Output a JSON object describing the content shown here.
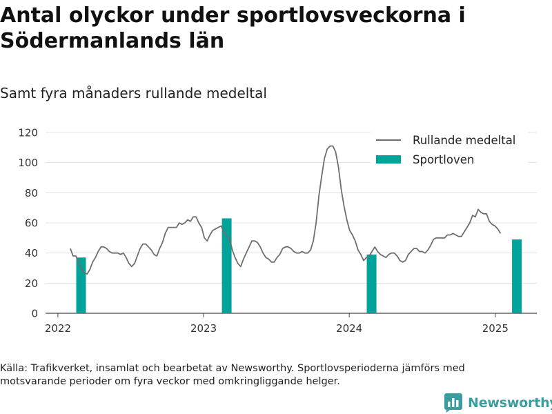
{
  "title": "Antal olyckor under sportlovsveckorna i Södermanlands län",
  "subtitle": "Samt fyra månaders rullande medeltal",
  "footnote": "Källa: Trafikverket, insamlat och bearbetat av Newsworthy. Sportlovsperioderna jämförs med motsvarande perioder om fyra veckor med omkringliggande helger.",
  "logo": {
    "text": "Newsworthy",
    "icon": "newsworthy-bar-chart-logo-icon"
  },
  "colors": {
    "line": "#6e6e6e",
    "bar": "#00a39a",
    "grid": "#e3e3e3",
    "axis": "#444444",
    "logo": "#3a9e9e"
  },
  "chart_data": {
    "type": "line",
    "x_axis": {
      "ticks": [
        "2022",
        "2023",
        "2024",
        "2025"
      ],
      "range": [
        "2021-12-01",
        "2025-04-15"
      ]
    },
    "y_axis": {
      "ticks": [
        0,
        20,
        40,
        60,
        80,
        100,
        120
      ],
      "range": [
        0,
        120
      ]
    },
    "grid": true,
    "legend_position": "top-right",
    "series": [
      {
        "name": "Rullande medeltal",
        "type": "line",
        "points": [
          [
            "2022-02-01",
            43
          ],
          [
            "2022-02-08",
            38
          ],
          [
            "2022-02-15",
            38
          ],
          [
            "2022-02-22",
            34
          ],
          [
            "2022-03-01",
            29
          ],
          [
            "2022-03-08",
            27
          ],
          [
            "2022-03-15",
            26
          ],
          [
            "2022-03-22",
            29
          ],
          [
            "2022-03-29",
            34
          ],
          [
            "2022-04-05",
            37
          ],
          [
            "2022-04-12",
            41
          ],
          [
            "2022-04-19",
            44
          ],
          [
            "2022-04-26",
            44
          ],
          [
            "2022-05-03",
            43
          ],
          [
            "2022-05-10",
            41
          ],
          [
            "2022-05-17",
            40
          ],
          [
            "2022-05-24",
            40
          ],
          [
            "2022-05-31",
            40
          ],
          [
            "2022-06-07",
            39
          ],
          [
            "2022-06-14",
            40
          ],
          [
            "2022-06-21",
            37
          ],
          [
            "2022-06-28",
            33
          ],
          [
            "2022-07-05",
            31
          ],
          [
            "2022-07-12",
            33
          ],
          [
            "2022-07-19",
            38
          ],
          [
            "2022-07-26",
            43
          ],
          [
            "2022-08-02",
            46
          ],
          [
            "2022-08-09",
            46
          ],
          [
            "2022-08-16",
            44
          ],
          [
            "2022-08-23",
            42
          ],
          [
            "2022-08-30",
            39
          ],
          [
            "2022-09-06",
            38
          ],
          [
            "2022-09-13",
            43
          ],
          [
            "2022-09-20",
            47
          ],
          [
            "2022-09-27",
            53
          ],
          [
            "2022-10-04",
            57
          ],
          [
            "2022-10-11",
            57
          ],
          [
            "2022-10-18",
            57
          ],
          [
            "2022-10-25",
            57
          ],
          [
            "2022-11-01",
            60
          ],
          [
            "2022-11-08",
            59
          ],
          [
            "2022-11-15",
            60
          ],
          [
            "2022-11-22",
            62
          ],
          [
            "2022-11-29",
            61
          ],
          [
            "2022-12-06",
            64
          ],
          [
            "2022-12-13",
            64
          ],
          [
            "2022-12-20",
            60
          ],
          [
            "2022-12-27",
            57
          ],
          [
            "2023-01-03",
            50
          ],
          [
            "2023-01-10",
            48
          ],
          [
            "2023-01-17",
            52
          ],
          [
            "2023-01-24",
            55
          ],
          [
            "2023-01-31",
            56
          ],
          [
            "2023-02-07",
            57
          ],
          [
            "2023-02-14",
            58
          ],
          [
            "2023-02-21",
            54
          ],
          [
            "2023-02-28",
            51
          ],
          [
            "2023-03-07",
            50
          ],
          [
            "2023-03-14",
            42
          ],
          [
            "2023-03-21",
            37
          ],
          [
            "2023-03-28",
            33
          ],
          [
            "2023-04-04",
            31
          ],
          [
            "2023-04-11",
            36
          ],
          [
            "2023-04-18",
            40
          ],
          [
            "2023-04-25",
            44
          ],
          [
            "2023-05-02",
            48
          ],
          [
            "2023-05-09",
            48
          ],
          [
            "2023-05-16",
            47
          ],
          [
            "2023-05-23",
            44
          ],
          [
            "2023-05-30",
            40
          ],
          [
            "2023-06-06",
            37
          ],
          [
            "2023-06-13",
            36
          ],
          [
            "2023-06-20",
            34
          ],
          [
            "2023-06-27",
            34
          ],
          [
            "2023-07-04",
            37
          ],
          [
            "2023-07-11",
            39
          ],
          [
            "2023-07-18",
            43
          ],
          [
            "2023-07-25",
            44
          ],
          [
            "2023-08-01",
            44
          ],
          [
            "2023-08-08",
            43
          ],
          [
            "2023-08-15",
            41
          ],
          [
            "2023-08-22",
            40
          ],
          [
            "2023-08-29",
            40
          ],
          [
            "2023-09-05",
            41
          ],
          [
            "2023-09-12",
            40
          ],
          [
            "2023-09-19",
            40
          ],
          [
            "2023-09-26",
            42
          ],
          [
            "2023-10-03",
            48
          ],
          [
            "2023-10-10",
            60
          ],
          [
            "2023-10-17",
            78
          ],
          [
            "2023-10-24",
            91
          ],
          [
            "2023-10-31",
            103
          ],
          [
            "2023-11-07",
            109
          ],
          [
            "2023-11-14",
            111
          ],
          [
            "2023-11-21",
            111
          ],
          [
            "2023-11-28",
            107
          ],
          [
            "2023-12-05",
            97
          ],
          [
            "2023-12-12",
            82
          ],
          [
            "2023-12-19",
            71
          ],
          [
            "2023-12-26",
            62
          ],
          [
            "2024-01-02",
            55
          ],
          [
            "2024-01-09",
            52
          ],
          [
            "2024-01-16",
            48
          ],
          [
            "2024-01-23",
            42
          ],
          [
            "2024-01-30",
            39
          ],
          [
            "2024-02-06",
            35
          ],
          [
            "2024-02-13",
            37
          ],
          [
            "2024-02-20",
            38
          ],
          [
            "2024-02-27",
            41
          ],
          [
            "2024-03-05",
            44
          ],
          [
            "2024-03-12",
            41
          ],
          [
            "2024-03-19",
            39
          ],
          [
            "2024-03-26",
            38
          ],
          [
            "2024-04-02",
            37
          ],
          [
            "2024-04-09",
            39
          ],
          [
            "2024-04-16",
            40
          ],
          [
            "2024-04-23",
            40
          ],
          [
            "2024-04-30",
            38
          ],
          [
            "2024-05-07",
            35
          ],
          [
            "2024-05-14",
            34
          ],
          [
            "2024-05-21",
            35
          ],
          [
            "2024-05-28",
            39
          ],
          [
            "2024-06-04",
            41
          ],
          [
            "2024-06-11",
            43
          ],
          [
            "2024-06-18",
            43
          ],
          [
            "2024-06-25",
            41
          ],
          [
            "2024-07-02",
            41
          ],
          [
            "2024-07-09",
            40
          ],
          [
            "2024-07-16",
            42
          ],
          [
            "2024-07-23",
            45
          ],
          [
            "2024-07-30",
            49
          ],
          [
            "2024-08-06",
            50
          ],
          [
            "2024-08-13",
            50
          ],
          [
            "2024-08-20",
            50
          ],
          [
            "2024-08-27",
            50
          ],
          [
            "2024-09-03",
            52
          ],
          [
            "2024-09-10",
            52
          ],
          [
            "2024-09-17",
            53
          ],
          [
            "2024-09-24",
            52
          ],
          [
            "2024-10-01",
            51
          ],
          [
            "2024-10-08",
            51
          ],
          [
            "2024-10-15",
            54
          ],
          [
            "2024-10-22",
            57
          ],
          [
            "2024-10-29",
            60
          ],
          [
            "2024-11-05",
            65
          ],
          [
            "2024-11-12",
            64
          ],
          [
            "2024-11-19",
            69
          ],
          [
            "2024-11-26",
            67
          ],
          [
            "2024-12-03",
            66
          ],
          [
            "2024-12-10",
            66
          ],
          [
            "2024-12-17",
            61
          ],
          [
            "2024-12-24",
            59
          ],
          [
            "2024-12-31",
            58
          ],
          [
            "2025-01-07",
            56
          ],
          [
            "2025-01-14",
            53
          ]
        ]
      },
      {
        "name": "Sportloven",
        "type": "bar",
        "points": [
          [
            "2022-02-28",
            37
          ],
          [
            "2023-02-28",
            63
          ],
          [
            "2024-02-26",
            39
          ],
          [
            "2025-02-24",
            49
          ]
        ]
      }
    ]
  }
}
